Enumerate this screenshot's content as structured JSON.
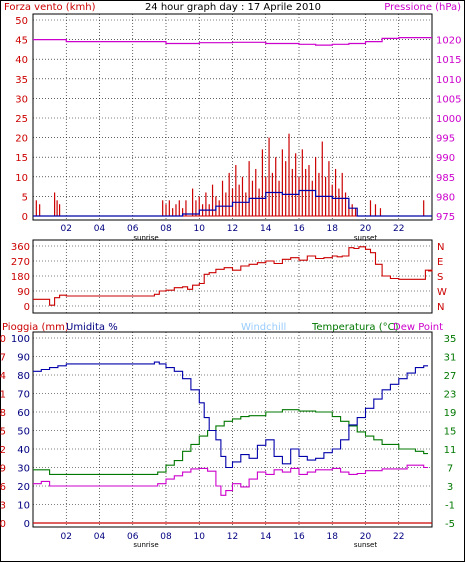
{
  "title": "24 hour graph day : 17 Aprile 2010",
  "colors": {
    "wind": "#cc0000",
    "gust_line": "#0000aa",
    "pressure": "#cc00cc",
    "direction": "#cc0000",
    "rain": "#cc0000",
    "humidity": "#0000aa",
    "windchill": "#99ccff",
    "temperature": "#007700",
    "dewpoint": "#cc00cc",
    "axis_red": "#cc0000",
    "axis_green": "#007700",
    "axis_magenta": "#cc00cc"
  },
  "chart_data": [
    {
      "type": "line",
      "panel": "wind-pressure",
      "left_axis_label": "Forza vento (kmh)",
      "right_axis_label": "Pressione (hPa)",
      "left_ticks": [
        "0",
        "5",
        "10",
        "15",
        "20",
        "25",
        "30",
        "35",
        "40",
        "45",
        "50"
      ],
      "right_ticks": [
        "975",
        "980",
        "985",
        "990",
        "995",
        "1000",
        "1005",
        "1010",
        "1015",
        "1020"
      ],
      "ylim_left": [
        0,
        50
      ],
      "ylim_right": [
        975,
        1025
      ],
      "x_ticks": [
        "02",
        "04",
        "06",
        "08",
        "10",
        "12",
        "14",
        "16",
        "18",
        "20",
        "22"
      ],
      "sunrise_label": "sunrise",
      "sunset_label": "sunset",
      "sunrise_hour": 6.8,
      "sunset_hour": 20.0,
      "pressure": {
        "x": [
          0,
          2,
          4,
          6,
          8,
          10,
          12,
          14,
          16,
          17,
          18,
          19,
          20,
          21,
          22,
          24
        ],
        "y": [
          1020,
          1019.5,
          1019.5,
          1019.5,
          1019,
          1019.2,
          1019.3,
          1019,
          1018.8,
          1018.6,
          1018.8,
          1019,
          1019.5,
          1020.3,
          1020.5,
          1020.5
        ]
      },
      "average_wind": {
        "x": [
          0,
          8,
          9,
          10,
          11,
          12,
          13,
          14,
          15,
          16,
          17,
          18,
          19,
          19.5,
          24
        ],
        "y": [
          0,
          0,
          0.5,
          1.5,
          2.5,
          3.5,
          4.5,
          6,
          5.5,
          6.5,
          5,
          4.5,
          2,
          0,
          0
        ]
      },
      "gusts": [
        {
          "h": 0.2,
          "v": 4
        },
        {
          "h": 0.4,
          "v": 3
        },
        {
          "h": 1.3,
          "v": 6
        },
        {
          "h": 1.45,
          "v": 4
        },
        {
          "h": 1.6,
          "v": 3
        },
        {
          "h": 7.8,
          "v": 4
        },
        {
          "h": 8.0,
          "v": 3
        },
        {
          "h": 8.2,
          "v": 4
        },
        {
          "h": 8.4,
          "v": 2
        },
        {
          "h": 8.6,
          "v": 3
        },
        {
          "h": 8.8,
          "v": 4
        },
        {
          "h": 9.0,
          "v": 2
        },
        {
          "h": 9.2,
          "v": 4
        },
        {
          "h": 9.6,
          "v": 7
        },
        {
          "h": 9.8,
          "v": 4
        },
        {
          "h": 10.0,
          "v": 5
        },
        {
          "h": 10.2,
          "v": 3
        },
        {
          "h": 10.4,
          "v": 6
        },
        {
          "h": 10.6,
          "v": 3
        },
        {
          "h": 10.8,
          "v": 8
        },
        {
          "h": 11.0,
          "v": 5
        },
        {
          "h": 11.2,
          "v": 4
        },
        {
          "h": 11.4,
          "v": 9
        },
        {
          "h": 11.6,
          "v": 6
        },
        {
          "h": 11.8,
          "v": 11
        },
        {
          "h": 12.0,
          "v": 7
        },
        {
          "h": 12.2,
          "v": 13
        },
        {
          "h": 12.4,
          "v": 8
        },
        {
          "h": 12.6,
          "v": 10
        },
        {
          "h": 12.8,
          "v": 6
        },
        {
          "h": 13.0,
          "v": 14
        },
        {
          "h": 13.2,
          "v": 9
        },
        {
          "h": 13.4,
          "v": 12
        },
        {
          "h": 13.6,
          "v": 7
        },
        {
          "h": 13.8,
          "v": 17
        },
        {
          "h": 14.0,
          "v": 10
        },
        {
          "h": 14.2,
          "v": 20
        },
        {
          "h": 14.4,
          "v": 11
        },
        {
          "h": 14.6,
          "v": 15
        },
        {
          "h": 14.8,
          "v": 9
        },
        {
          "h": 15.0,
          "v": 17
        },
        {
          "h": 15.2,
          "v": 14
        },
        {
          "h": 15.4,
          "v": 21
        },
        {
          "h": 15.6,
          "v": 12
        },
        {
          "h": 15.8,
          "v": 16
        },
        {
          "h": 16.0,
          "v": 10
        },
        {
          "h": 16.2,
          "v": 17
        },
        {
          "h": 16.4,
          "v": 12
        },
        {
          "h": 16.6,
          "v": 13
        },
        {
          "h": 16.8,
          "v": 9
        },
        {
          "h": 17.0,
          "v": 15
        },
        {
          "h": 17.2,
          "v": 11
        },
        {
          "h": 17.4,
          "v": 19
        },
        {
          "h": 17.6,
          "v": 10
        },
        {
          "h": 17.8,
          "v": 14
        },
        {
          "h": 18.0,
          "v": 8
        },
        {
          "h": 18.2,
          "v": 12
        },
        {
          "h": 18.4,
          "v": 7
        },
        {
          "h": 18.6,
          "v": 11
        },
        {
          "h": 18.8,
          "v": 6
        },
        {
          "h": 19.0,
          "v": 4
        },
        {
          "h": 19.2,
          "v": 3
        },
        {
          "h": 19.4,
          "v": 2
        },
        {
          "h": 20.3,
          "v": 4
        },
        {
          "h": 20.6,
          "v": 3
        },
        {
          "h": 20.9,
          "v": 2
        },
        {
          "h": 23.5,
          "v": 4
        }
      ]
    },
    {
      "type": "line",
      "panel": "wind-direction",
      "left_ticks": [
        "0",
        "90",
        "180",
        "270",
        "360"
      ],
      "right_ticks": [
        "N",
        "W",
        "S",
        "E",
        "N"
      ],
      "ylim": [
        0,
        360
      ],
      "sunrise_label": "sunrise",
      "sunset_label": "sunset",
      "direction": {
        "x": [
          0,
          0.5,
          1.0,
          1.3,
          1.6,
          2.0,
          3,
          4,
          5,
          6,
          7,
          7.3,
          7.6,
          8,
          8.5,
          9,
          9.3,
          9.6,
          10,
          10.3,
          10.6,
          11,
          11.5,
          12,
          12.5,
          13,
          13.5,
          14,
          14.5,
          15,
          15.5,
          16,
          16.5,
          17,
          17.5,
          18,
          18.3,
          18.6,
          19,
          19.3,
          19.6,
          20,
          20.3,
          20.6,
          21,
          21.5,
          22,
          22.5,
          23,
          23.3,
          23.6,
          24
        ],
        "y": [
          40,
          40,
          5,
          50,
          65,
          60,
          60,
          60,
          60,
          60,
          60,
          70,
          90,
          95,
          110,
          115,
          100,
          125,
          135,
          190,
          200,
          220,
          230,
          215,
          240,
          250,
          260,
          270,
          255,
          280,
          290,
          275,
          300,
          285,
          290,
          300,
          295,
          300,
          350,
          345,
          355,
          340,
          320,
          250,
          180,
          165,
          160,
          160,
          160,
          160,
          215,
          210
        ]
      }
    },
    {
      "type": "line",
      "panel": "rain-humidity-temperature",
      "left_axis_label_1": "Pioggia (mm)",
      "left_axis_label_2": "Umidita %",
      "windchill_label": "Windchill",
      "right_axis_label": "Temperatura (°C)",
      "dewpoint_label": "Dew Point",
      "rain_ticks": [
        "0",
        "3",
        "6",
        "9",
        "12",
        "15",
        "18",
        "21",
        "24",
        "27",
        "30"
      ],
      "humidity_ticks": [
        "0",
        "10",
        "20",
        "30",
        "40",
        "50",
        "60",
        "70",
        "80",
        "90",
        "100"
      ],
      "temperature_ticks": [
        "-5",
        "-1",
        "3",
        "7",
        "11",
        "15",
        "19",
        "23",
        "27",
        "31",
        "35"
      ],
      "ylim_humidity": [
        0,
        100
      ],
      "ylim_temperature": [
        -5,
        35
      ],
      "x_ticks": [
        "02",
        "04",
        "06",
        "08",
        "10",
        "12",
        "14",
        "16",
        "18",
        "20",
        "22"
      ],
      "sunrise_label": "sunrise",
      "sunset_label": "sunset",
      "humidity": {
        "x": [
          0,
          0.5,
          1.0,
          1.5,
          2,
          4,
          6,
          7.0,
          7.3,
          7.6,
          8.0,
          8.5,
          9.0,
          9.5,
          10,
          10.3,
          10.6,
          11,
          11.3,
          11.6,
          12,
          12.5,
          13,
          13.5,
          14,
          14.5,
          15,
          15.5,
          16,
          16.5,
          17,
          17.5,
          18,
          18.5,
          19,
          19.5,
          20,
          20.5,
          21,
          21.5,
          22,
          22.5,
          23,
          23.5
        ],
        "y": [
          82,
          83,
          84,
          85,
          86,
          86,
          86,
          86,
          87,
          86,
          84,
          82,
          78,
          72,
          65,
          57,
          50,
          45,
          36,
          30,
          33,
          37,
          35,
          42,
          45,
          36,
          32,
          40,
          36,
          34,
          35,
          38,
          40,
          45,
          53,
          57,
          62,
          67,
          72,
          75,
          78,
          81,
          84,
          85
        ]
      },
      "temperature": {
        "x": [
          0,
          0.5,
          1,
          2,
          4,
          6,
          7,
          7.5,
          8,
          8.5,
          9,
          9.5,
          10,
          10.5,
          11,
          11.5,
          12,
          12.5,
          13,
          14,
          15,
          16,
          17,
          18,
          18.5,
          19,
          19.5,
          20,
          20.5,
          21,
          22,
          23,
          23.5
        ],
        "y": [
          6.5,
          6.5,
          5.5,
          5.5,
          5.5,
          5.5,
          5.5,
          6.0,
          7.5,
          8.5,
          10.5,
          12,
          13.8,
          15,
          16,
          17,
          17.5,
          18.0,
          18.2,
          19,
          19.5,
          19.2,
          19,
          18,
          17,
          16,
          14.7,
          13.8,
          13,
          12,
          11,
          10.5,
          10.0
        ]
      },
      "dewpoint": {
        "x": [
          0,
          0.5,
          1,
          2,
          4,
          6,
          7,
          7.5,
          8,
          8.5,
          9,
          9.5,
          10,
          10.5,
          11,
          11.3,
          11.6,
          12,
          12.5,
          13,
          13.5,
          14,
          14.5,
          15,
          15.5,
          16,
          16.5,
          17,
          17.5,
          18,
          18.5,
          19,
          19.5,
          20,
          21,
          22,
          22.5,
          23,
          23.5
        ],
        "y": [
          3.5,
          4.0,
          3.0,
          3.0,
          3.0,
          3.0,
          3.0,
          3.5,
          4.5,
          5.2,
          6.0,
          6.7,
          6.8,
          6.2,
          3.0,
          1.0,
          2.0,
          3.5,
          2.8,
          4.5,
          6.0,
          5.5,
          6.5,
          6.0,
          6.8,
          5.5,
          6.0,
          6.5,
          6.5,
          6.8,
          6.0,
          5.5,
          5.7,
          6.3,
          6.7,
          6.7,
          7.5,
          7.5,
          7.0
        ]
      },
      "rain": {
        "x": [
          0,
          24
        ],
        "y": [
          0,
          0
        ]
      }
    }
  ]
}
